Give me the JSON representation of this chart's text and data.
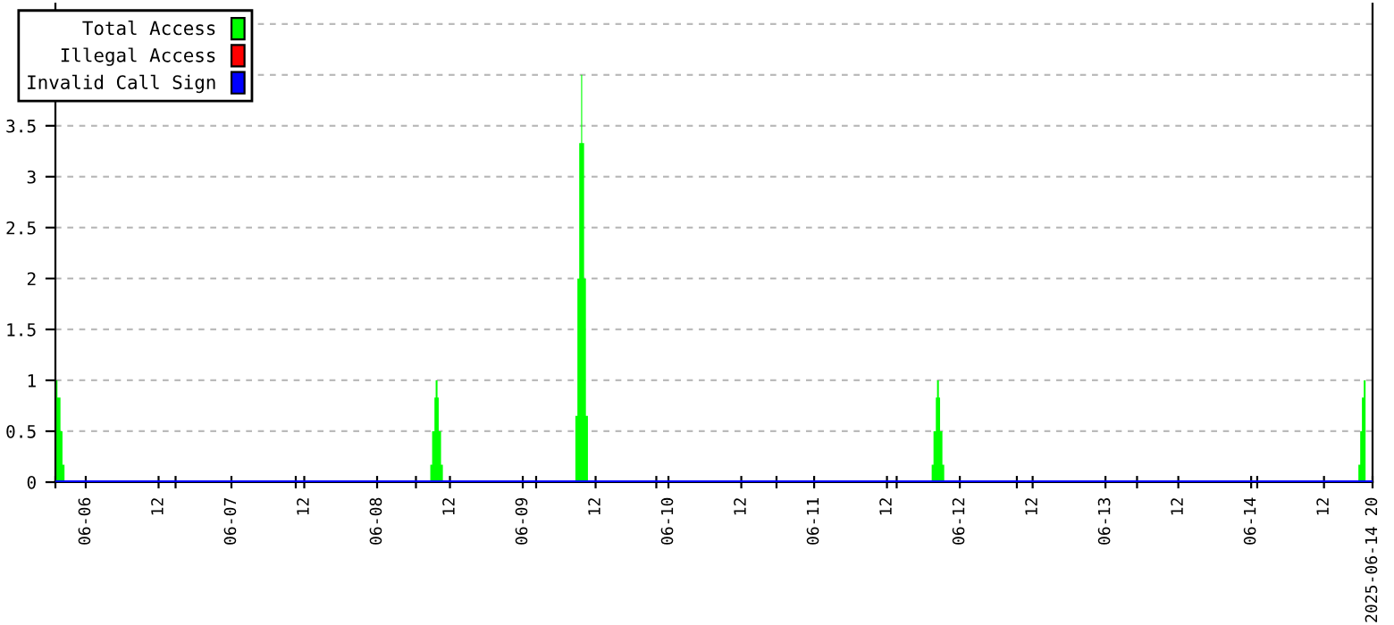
{
  "chart_data": {
    "type": "area",
    "xlim": [
      "2025-06-05T19:00",
      "2025-06-14T20:00"
    ],
    "ylim": [
      0,
      4.7
    ],
    "yticks": [
      0,
      0.5,
      1,
      1.5,
      2,
      2.5,
      3,
      3.5,
      {
        "value": 4,
        "label": null
      },
      {
        "value": 4.5,
        "label": null
      }
    ],
    "xticks": [
      {
        "value": "2025-06-06T00:00",
        "label": "06-06"
      },
      {
        "value": "2025-06-06T12:00",
        "label": "12"
      },
      {
        "value": "2025-06-07T00:00",
        "label": "06-07"
      },
      {
        "value": "2025-06-07T12:00",
        "label": "12"
      },
      {
        "value": "2025-06-08T00:00",
        "label": "06-08"
      },
      {
        "value": "2025-06-08T12:00",
        "label": "12"
      },
      {
        "value": "2025-06-09T00:00",
        "label": "06-09"
      },
      {
        "value": "2025-06-09T12:00",
        "label": "12"
      },
      {
        "value": "2025-06-10T00:00",
        "label": "06-10"
      },
      {
        "value": "2025-06-10T12:00",
        "label": "12"
      },
      {
        "value": "2025-06-11T00:00",
        "label": "06-11"
      },
      {
        "value": "2025-06-11T12:00",
        "label": "12"
      },
      {
        "value": "2025-06-12T00:00",
        "label": "06-12"
      },
      {
        "value": "2025-06-12T12:00",
        "label": "12"
      },
      {
        "value": "2025-06-13T00:00",
        "label": "06-13"
      },
      {
        "value": "2025-06-13T12:00",
        "label": "12"
      },
      {
        "value": "2025-06-14T00:00",
        "label": "06-14"
      },
      {
        "value": "2025-06-14T12:00",
        "label": "12"
      },
      {
        "value": "2025-06-14T20:00",
        "label": "2025-06-14 20"
      },
      {
        "value": "2025-06-05T19:00",
        "label": null
      },
      {
        "value": "2025-06-06T14:48",
        "label": null
      },
      {
        "value": "2025-06-07T10:36",
        "label": null
      },
      {
        "value": "2025-06-08T06:24",
        "label": null
      },
      {
        "value": "2025-06-09T02:12",
        "label": null
      },
      {
        "value": "2025-06-09T22:00",
        "label": null
      },
      {
        "value": "2025-06-10T17:48",
        "label": null
      },
      {
        "value": "2025-06-11T13:36",
        "label": null
      },
      {
        "value": "2025-06-12T09:24",
        "label": null
      },
      {
        "value": "2025-06-13T05:12",
        "label": null
      },
      {
        "value": "2025-06-14T01:00",
        "label": null
      }
    ],
    "grid": "y",
    "legend": "top left",
    "series": [
      {
        "name": "Total Access",
        "color": "#00ff00",
        "x": [
          "2025-06-05T19:00",
          "2025-06-05T19:20",
          "2025-06-05T19:20",
          "2025-06-05T19:50",
          "2025-06-05T19:50",
          "2025-06-05T20:10",
          "2025-06-05T20:10",
          "2025-06-05T20:30",
          "2025-06-05T20:30",
          "2025-06-08T08:46",
          "2025-06-08T08:46",
          "2025-06-08T09:04",
          "2025-06-08T09:04",
          "2025-06-08T09:27",
          "2025-06-08T09:27",
          "2025-06-08T09:39",
          "2025-06-08T09:39",
          "2025-06-08T09:57",
          "2025-06-08T09:57",
          "2025-06-08T10:09",
          "2025-06-08T10:09",
          "2025-06-08T10:32",
          "2025-06-08T10:32",
          "2025-06-08T10:50",
          "2025-06-08T10:50",
          "2025-06-09T08:40",
          "2025-06-09T08:40",
          "2025-06-09T09:00",
          "2025-06-09T09:00",
          "2025-06-09T09:18",
          "2025-06-09T09:18",
          "2025-06-09T09:37",
          "2025-06-09T09:37",
          "2025-06-09T09:47",
          "2025-06-09T09:47",
          "2025-06-09T10:06",
          "2025-06-09T10:06",
          "2025-06-09T10:24",
          "2025-06-09T10:24",
          "2025-06-09T10:44",
          "2025-06-09T10:44",
          "2025-06-11T19:22",
          "2025-06-11T19:22",
          "2025-06-11T19:40",
          "2025-06-11T19:40",
          "2025-06-11T20:03",
          "2025-06-11T20:03",
          "2025-06-11T20:15",
          "2025-06-11T20:15",
          "2025-06-11T20:33",
          "2025-06-11T20:33",
          "2025-06-11T20:45",
          "2025-06-11T20:45",
          "2025-06-11T21:08",
          "2025-06-11T21:08",
          "2025-06-11T21:26",
          "2025-06-11T21:26",
          "2025-06-14T17:40",
          "2025-06-14T17:40",
          "2025-06-14T17:58",
          "2025-06-14T17:58",
          "2025-06-14T18:15",
          "2025-06-14T18:15",
          "2025-06-14T18:33",
          "2025-06-14T18:33",
          "2025-06-14T18:51",
          "2025-06-14T18:51"
        ],
        "values": [
          1,
          1,
          0.83,
          0.83,
          0.5,
          0.5,
          0.17,
          0.17,
          0,
          0,
          0.17,
          0.17,
          0.5,
          0.5,
          0.83,
          0.83,
          1,
          1,
          0.83,
          0.83,
          0.5,
          0.5,
          0.17,
          0.17,
          0,
          0,
          0.65,
          0.65,
          2,
          2,
          3.33,
          3.33,
          4,
          4,
          3.33,
          3.33,
          2,
          2,
          0.65,
          0.65,
          0,
          0,
          0.17,
          0.17,
          0.5,
          0.5,
          0.83,
          0.83,
          1,
          1,
          0.83,
          0.83,
          0.5,
          0.5,
          0.17,
          0.17,
          0,
          0,
          0.17,
          0.17,
          0.5,
          0.5,
          0.83,
          0.83,
          1,
          1,
          0
        ]
      },
      {
        "name": "Illegal Access",
        "color": "#ff0000",
        "type": "line"
      },
      {
        "name": "Invalid Call Sign",
        "color": "#0000ff",
        "type": "line",
        "x": [
          "2025-06-05T19:00",
          "2025-06-14T20:00"
        ],
        "values": [
          0,
          0
        ]
      }
    ]
  }
}
